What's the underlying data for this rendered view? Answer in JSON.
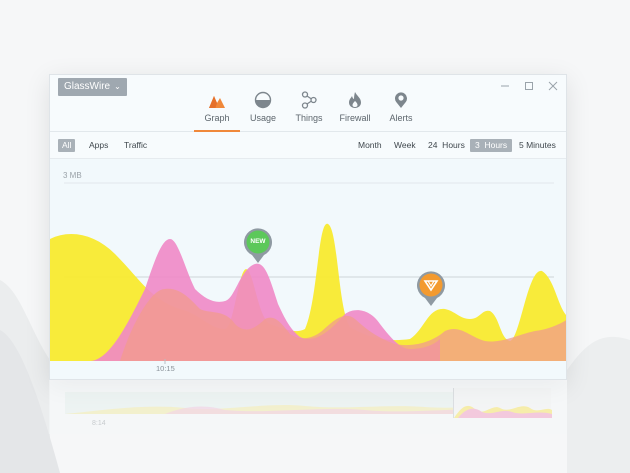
{
  "app": {
    "brand_menu": "GlassWire"
  },
  "nav": {
    "tabs": [
      {
        "label": "Graph",
        "icon": "graph-icon",
        "active": true
      },
      {
        "label": "Usage",
        "icon": "usage-icon",
        "active": false
      },
      {
        "label": "Things",
        "icon": "things-icon",
        "active": false
      },
      {
        "label": "Firewall",
        "icon": "firewall-icon",
        "active": false
      },
      {
        "label": "Alerts",
        "icon": "alerts-icon",
        "active": false
      }
    ]
  },
  "filters": [
    {
      "label": "All",
      "active": true
    },
    {
      "label": "Apps",
      "active": false
    },
    {
      "label": "Traffic",
      "active": false
    }
  ],
  "ranges": [
    {
      "label": "Month",
      "active": false
    },
    {
      "label": "Week",
      "active": false
    },
    {
      "label": "24  Hours",
      "active": false
    },
    {
      "label": "3  Hours",
      "active": true
    },
    {
      "label": "5 Minutes",
      "active": false
    }
  ],
  "graph": {
    "y_label": "3 MB",
    "x_label": "10:15",
    "markers": [
      {
        "label": "NEW",
        "color": "#5cc85a"
      },
      {
        "label": "",
        "color": "#f39a2f",
        "icon": "app-alert-icon"
      }
    ]
  },
  "overview": {
    "x_label": "8:14"
  },
  "colors": {
    "accent": "#f0883a",
    "upload": "#f7e833",
    "download": "#ee85c2"
  }
}
